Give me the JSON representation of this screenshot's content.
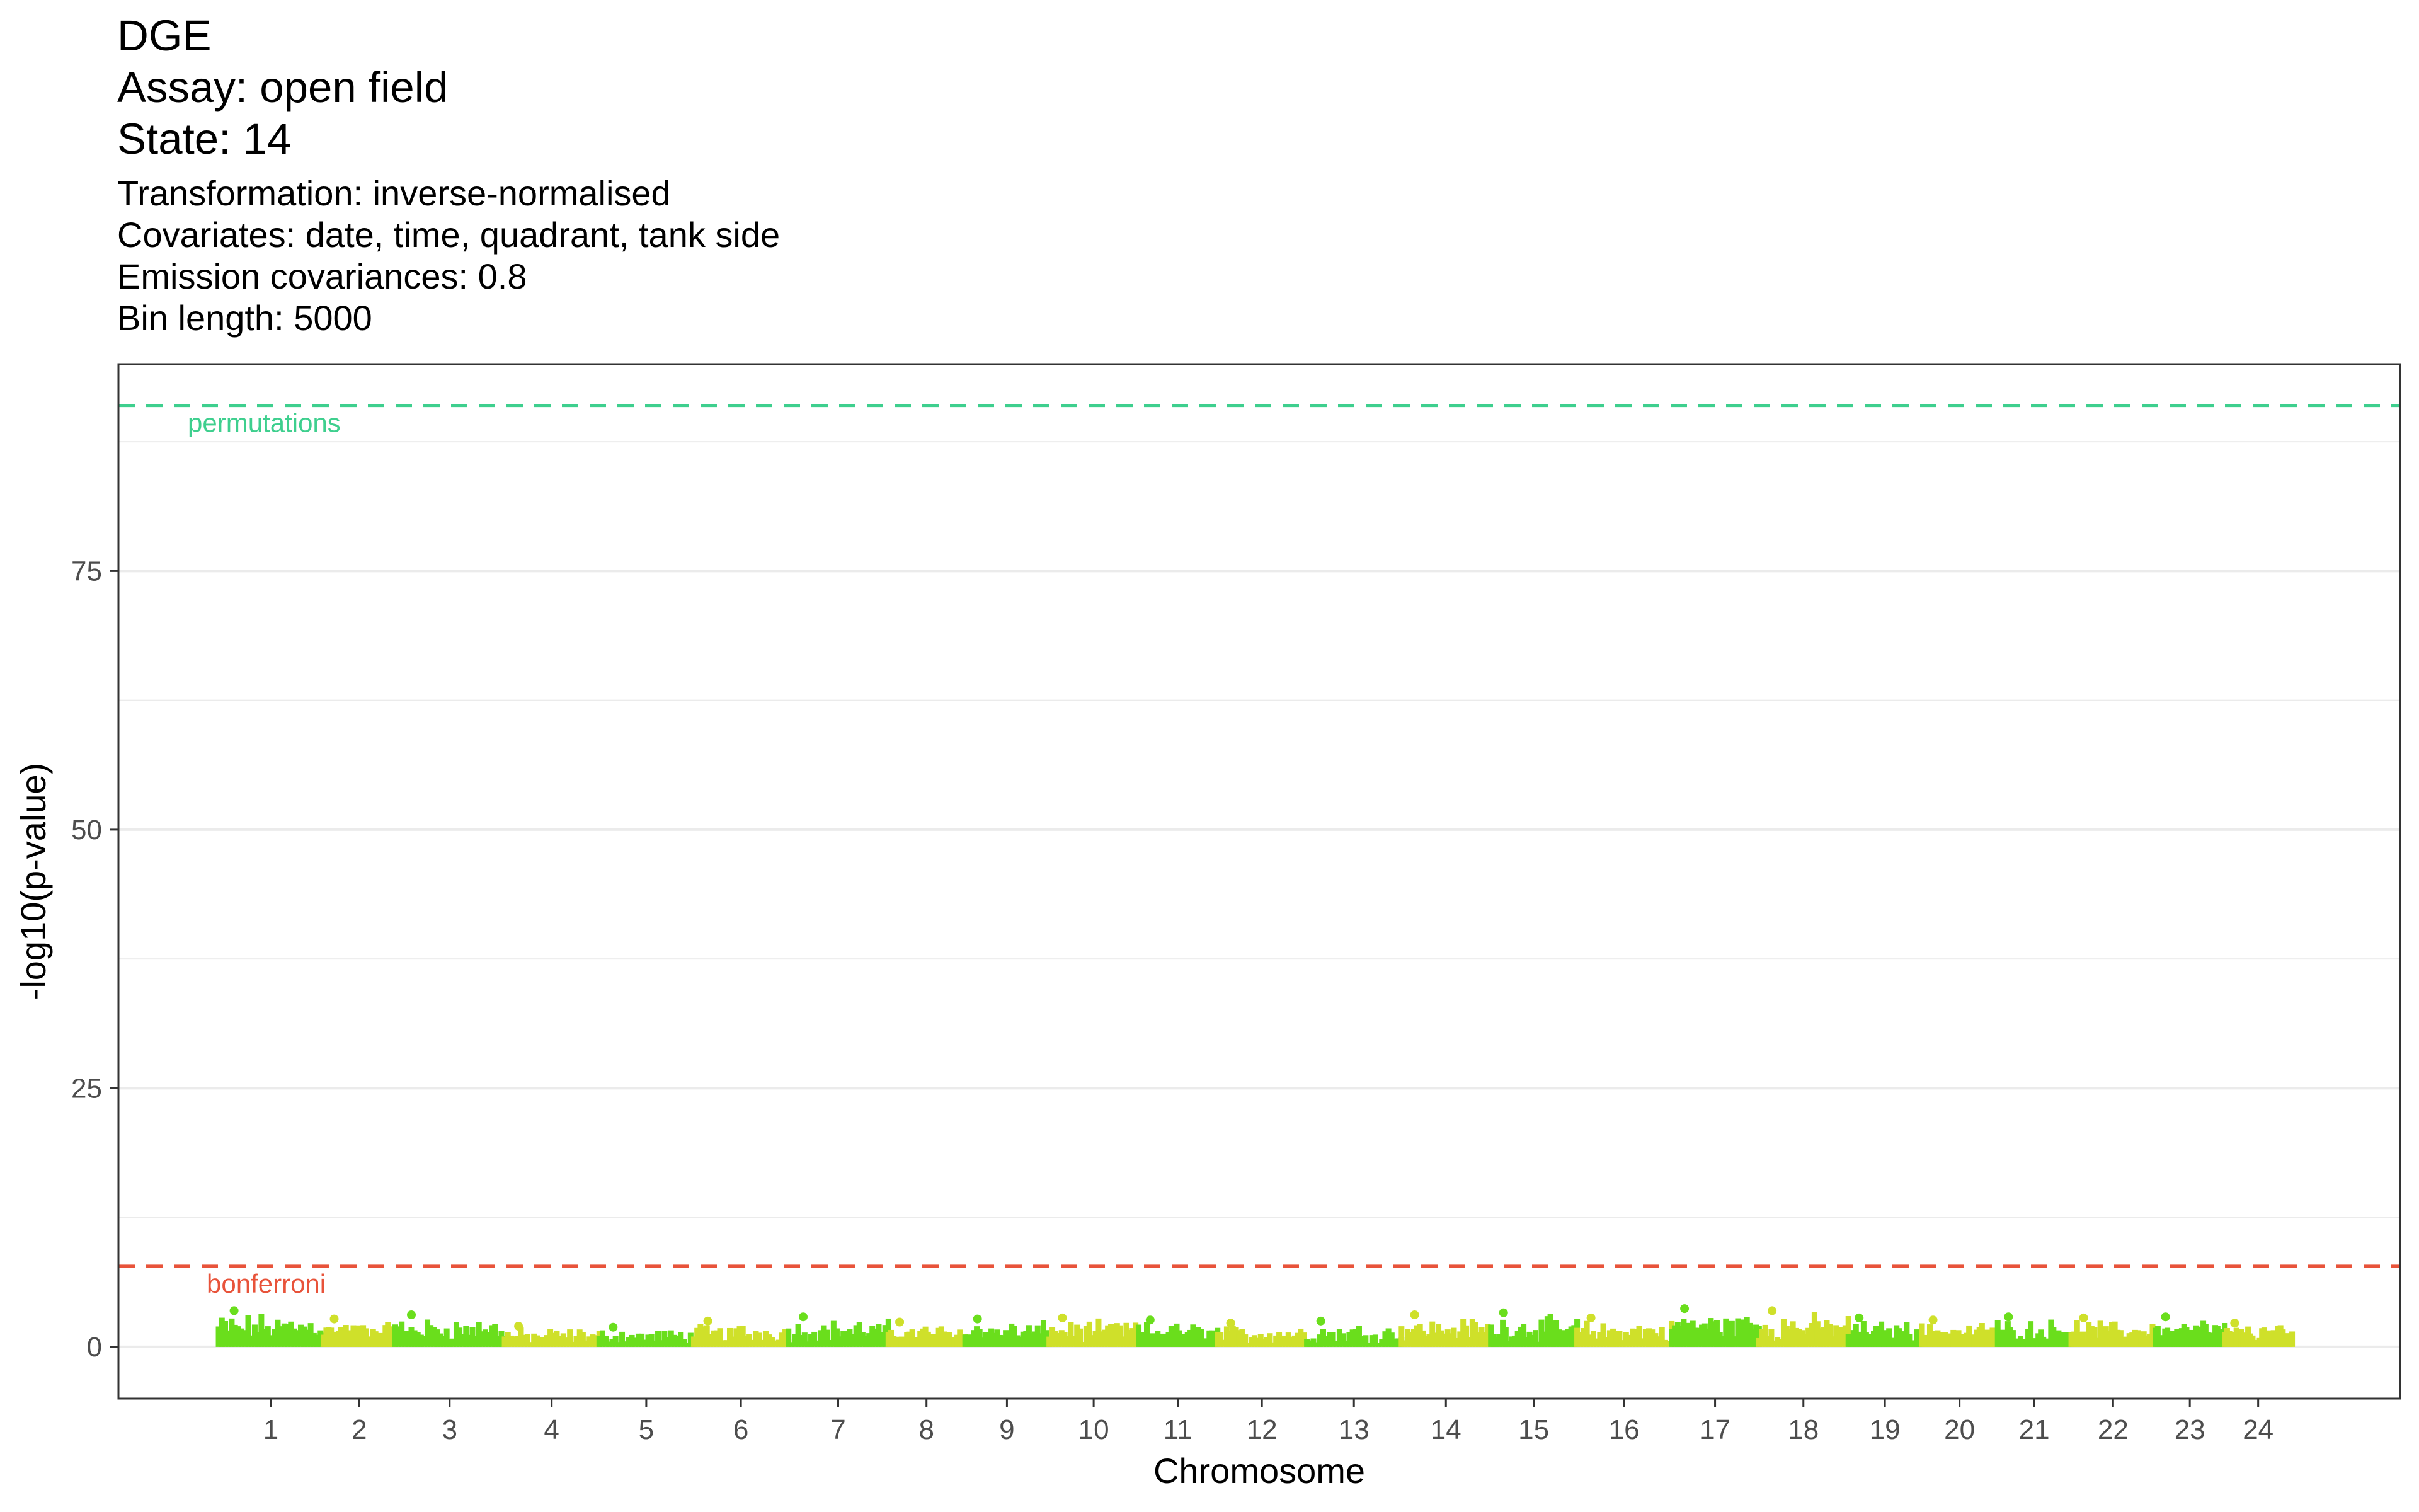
{
  "title": [
    "DGE",
    "Assay:  open field",
    "State:  14"
  ],
  "subtitle": [
    "Transformation:  inverse-normalised",
    "Covariates:  date, time, quadrant, tank side",
    "Emission covariances:  0.8",
    "Bin length:  5000"
  ],
  "colors": {
    "green": "#6ADE1C",
    "yellow": "#CFE02A",
    "permutations": "#3ECF8E",
    "bonferroni": "#E8533A",
    "grid": "#EBEBEB",
    "axis_text": "#4D4D4D"
  },
  "chart_data": {
    "type": "scatter",
    "xlabel": "Chromosome",
    "ylabel": "-log10(p-value)",
    "ylim": [
      -5,
      95
    ],
    "y_ticks": [
      0,
      25,
      50,
      75
    ],
    "y_tick_labels": [
      "0",
      "25",
      "50",
      "75"
    ],
    "grid": true,
    "categories": [
      "1",
      "2",
      "3",
      "4",
      "5",
      "6",
      "7",
      "8",
      "9",
      "10",
      "11",
      "12",
      "13",
      "14",
      "15",
      "16",
      "17",
      "18",
      "19",
      "20",
      "21",
      "22",
      "23",
      "24"
    ],
    "chromosome_bands": [
      {
        "chr": "1",
        "start": 0.0,
        "end": 1.0,
        "max": 3.5,
        "color": "green"
      },
      {
        "chr": "2",
        "start": 1.0,
        "end": 1.68,
        "max": 2.7,
        "color": "yellow"
      },
      {
        "chr": "3",
        "start": 1.68,
        "end": 2.72,
        "max": 3.1,
        "color": "green"
      },
      {
        "chr": "4",
        "start": 2.72,
        "end": 3.62,
        "max": 2.0,
        "color": "yellow"
      },
      {
        "chr": "5",
        "start": 3.62,
        "end": 4.52,
        "max": 1.9,
        "color": "green"
      },
      {
        "chr": "6",
        "start": 4.52,
        "end": 5.42,
        "max": 2.5,
        "color": "yellow"
      },
      {
        "chr": "7",
        "start": 5.42,
        "end": 6.37,
        "max": 2.9,
        "color": "green"
      },
      {
        "chr": "8",
        "start": 6.37,
        "end": 7.1,
        "max": 2.4,
        "color": "yellow"
      },
      {
        "chr": "9",
        "start": 7.1,
        "end": 7.9,
        "max": 2.7,
        "color": "green"
      },
      {
        "chr": "10",
        "start": 7.9,
        "end": 8.75,
        "max": 2.8,
        "color": "yellow"
      },
      {
        "chr": "11",
        "start": 8.75,
        "end": 9.5,
        "max": 2.6,
        "color": "green"
      },
      {
        "chr": "12",
        "start": 9.5,
        "end": 10.35,
        "max": 2.3,
        "color": "yellow"
      },
      {
        "chr": "13",
        "start": 10.35,
        "end": 11.25,
        "max": 2.5,
        "color": "green"
      },
      {
        "chr": "14",
        "start": 11.25,
        "end": 12.1,
        "max": 3.1,
        "color": "yellow"
      },
      {
        "chr": "15",
        "start": 12.1,
        "end": 12.92,
        "max": 3.3,
        "color": "green"
      },
      {
        "chr": "16",
        "start": 12.92,
        "end": 13.82,
        "max": 2.8,
        "color": "yellow"
      },
      {
        "chr": "17",
        "start": 13.82,
        "end": 14.65,
        "max": 3.7,
        "color": "green"
      },
      {
        "chr": "18",
        "start": 14.65,
        "end": 15.5,
        "max": 3.5,
        "color": "yellow"
      },
      {
        "chr": "19",
        "start": 15.5,
        "end": 16.2,
        "max": 2.8,
        "color": "green"
      },
      {
        "chr": "20",
        "start": 16.2,
        "end": 16.92,
        "max": 2.6,
        "color": "yellow"
      },
      {
        "chr": "21",
        "start": 16.92,
        "end": 17.62,
        "max": 2.9,
        "color": "green"
      },
      {
        "chr": "22",
        "start": 17.62,
        "end": 18.42,
        "max": 2.8,
        "color": "yellow"
      },
      {
        "chr": "23",
        "start": 18.42,
        "end": 19.08,
        "max": 2.9,
        "color": "green"
      },
      {
        "chr": "24",
        "start": 19.08,
        "end": 19.72,
        "max": 2.3,
        "color": "yellow"
      }
    ],
    "x_range": [
      -0.95,
      20.75
    ],
    "thresholds": [
      {
        "name": "permutations",
        "value": 91.0,
        "color": "permutations"
      },
      {
        "name": "bonferroni",
        "value": 7.8,
        "color": "bonferroni"
      }
    ]
  }
}
